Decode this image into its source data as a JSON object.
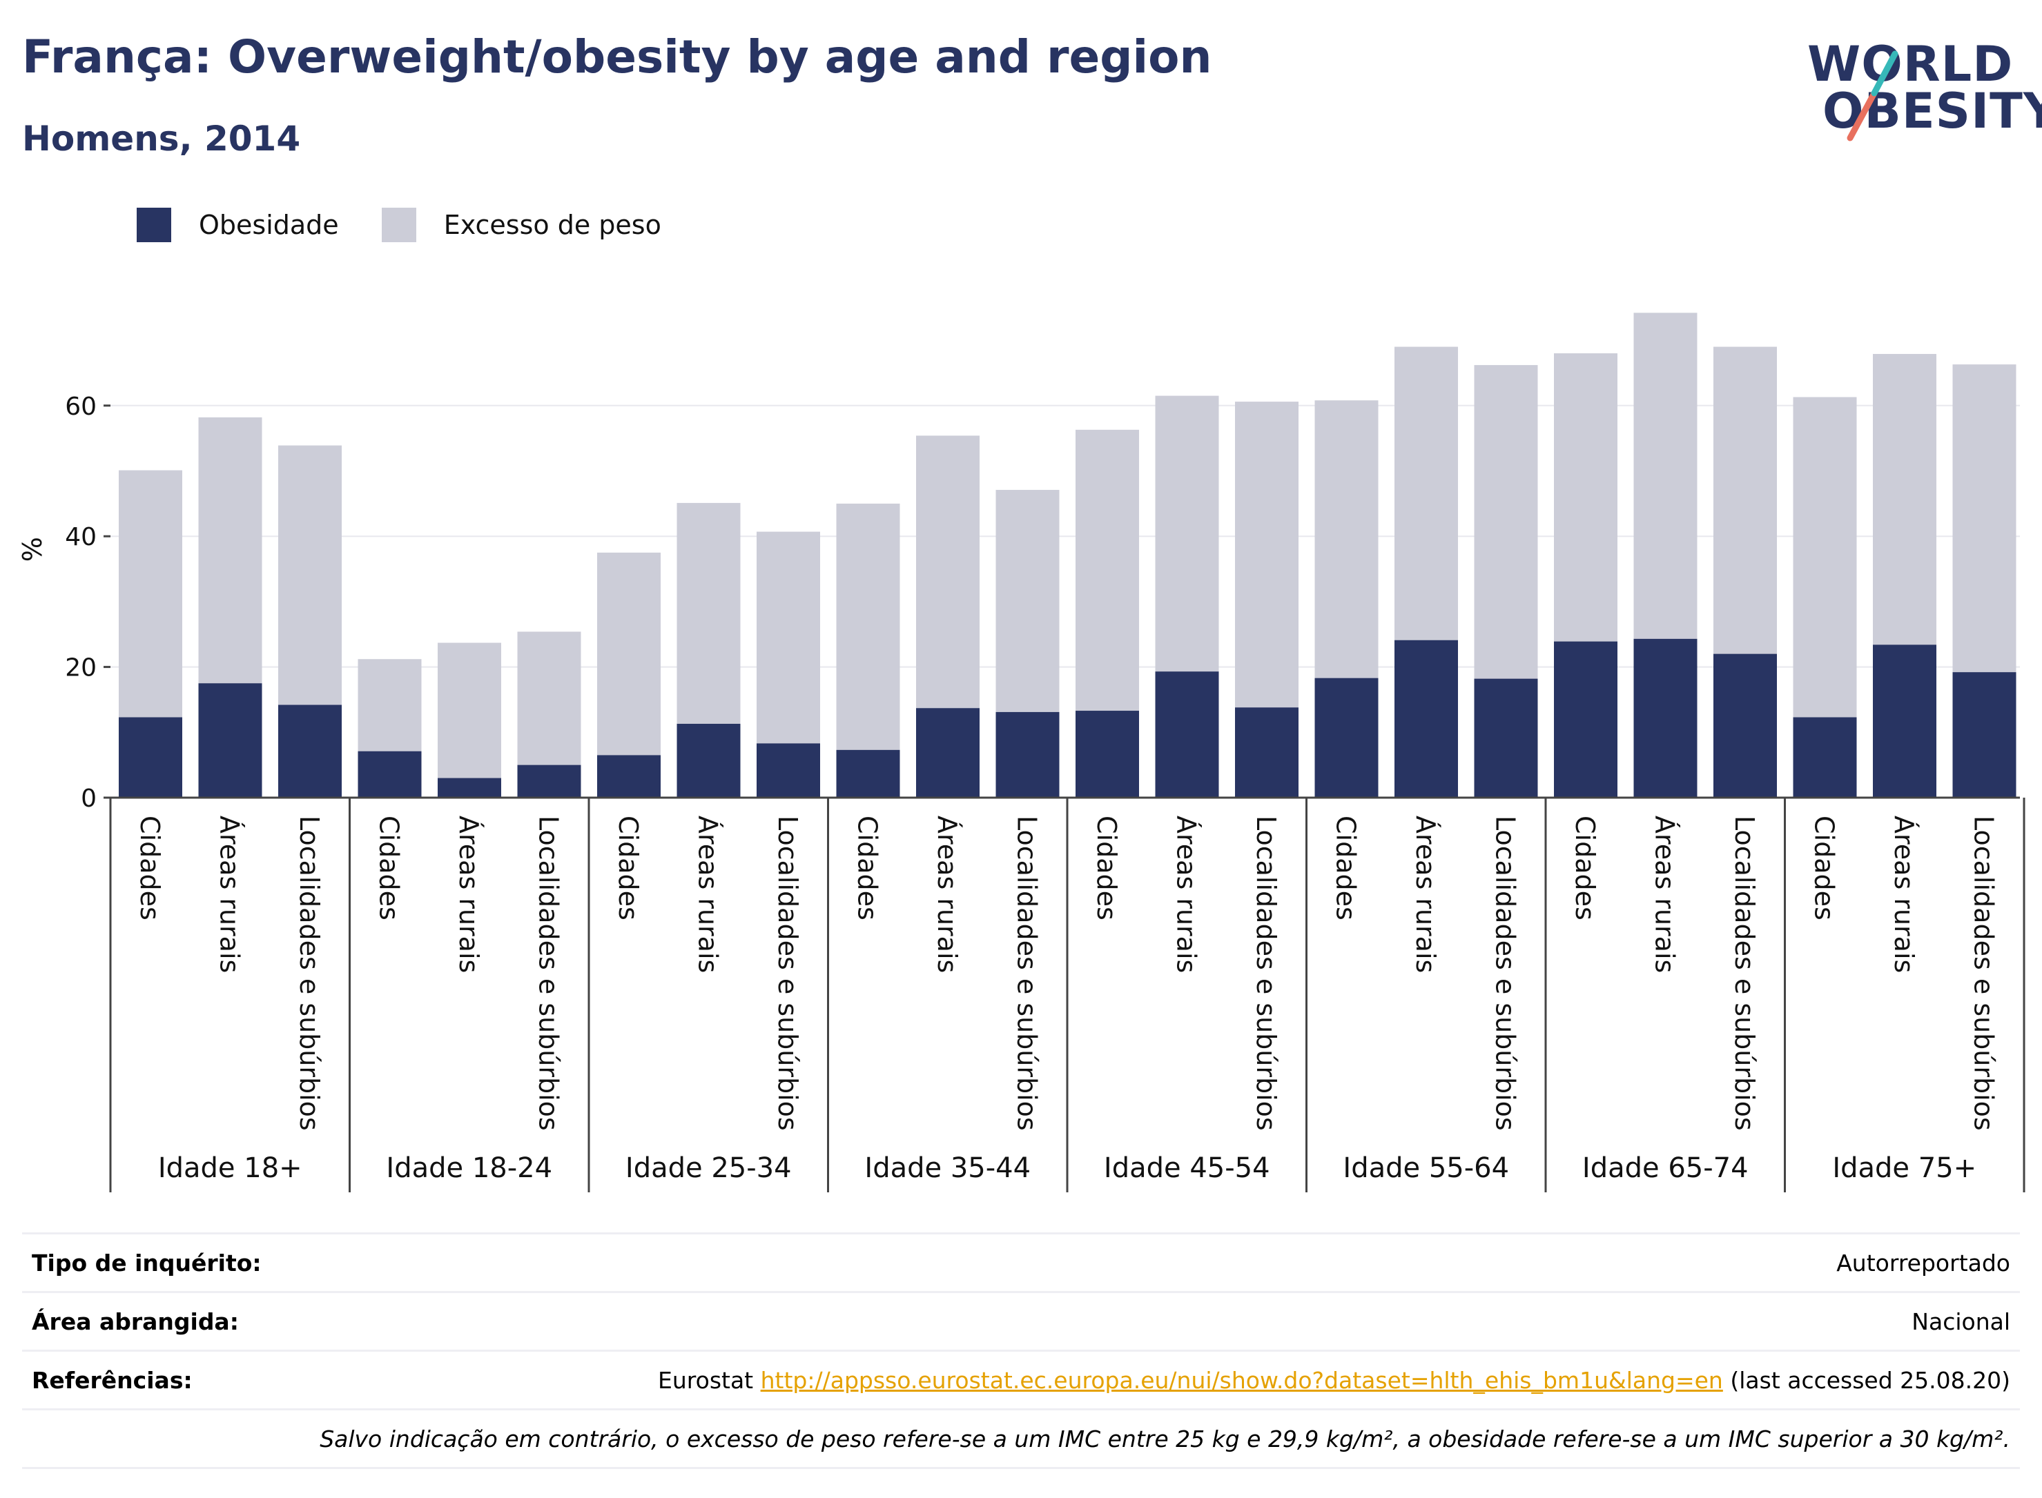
{
  "header": {
    "title": "França: Overweight/obesity by age and region",
    "subtitle": "Homens, 2014"
  },
  "logo": {
    "line1": "WORLD",
    "line2": "OBESITY"
  },
  "legend": {
    "items": [
      {
        "label": "Obesidade",
        "color": "#283462"
      },
      {
        "label": "Excesso de peso",
        "color": "#cccdd8"
      }
    ]
  },
  "chart_data": {
    "type": "bar",
    "stacked": false,
    "overlay": true,
    "ylabel": "%",
    "ylim": [
      0,
      78
    ],
    "yticks": [
      0,
      20,
      40,
      60
    ],
    "grid": true,
    "legend_position": "top-left",
    "groups": [
      "Idade 18+",
      "Idade 18-24",
      "Idade 25-34",
      "Idade 35-44",
      "Idade 45-54",
      "Idade 55-64",
      "Idade 65-74",
      "Idade 75+"
    ],
    "subcategories": [
      "Cidades",
      "Áreas rurais",
      "Localidades e subúrbios"
    ],
    "series": [
      {
        "name": "Excesso de peso",
        "color": "#cccdd8",
        "values": [
          50.1,
          58.2,
          53.9,
          21.2,
          23.7,
          25.4,
          37.5,
          45.1,
          40.7,
          45.0,
          55.4,
          47.1,
          56.3,
          61.5,
          60.6,
          60.8,
          69.0,
          66.2,
          68.0,
          74.2,
          69.0,
          61.3,
          67.9,
          66.3
        ]
      },
      {
        "name": "Obesidade",
        "color": "#283462",
        "values": [
          12.3,
          17.5,
          14.2,
          7.1,
          3.0,
          5.0,
          6.5,
          11.3,
          8.3,
          7.3,
          13.7,
          13.1,
          13.3,
          19.3,
          13.8,
          18.3,
          24.1,
          18.2,
          23.9,
          24.3,
          22.0,
          12.3,
          23.4,
          19.2
        ]
      }
    ]
  },
  "info_table": {
    "survey_label": "Tipo de inquérito:",
    "survey_value": "Autorreportado",
    "area_label": "Área abrangida:",
    "area_value": "Nacional",
    "ref_label": "Referências:",
    "ref_prefix": "Eurostat ",
    "ref_link": "http://appsso.eurostat.ec.europa.eu/nui/show.do?dataset=hlth_ehis_bm1u&lang=en",
    "ref_suffix": " (last accessed 25.08.20)",
    "note": "Salvo indicação em contrário, o excesso de peso refere-se a um IMC entre 25 kg e 29,9 kg/m², a obesidade refere-se a um IMC superior a 30 kg/m²."
  }
}
